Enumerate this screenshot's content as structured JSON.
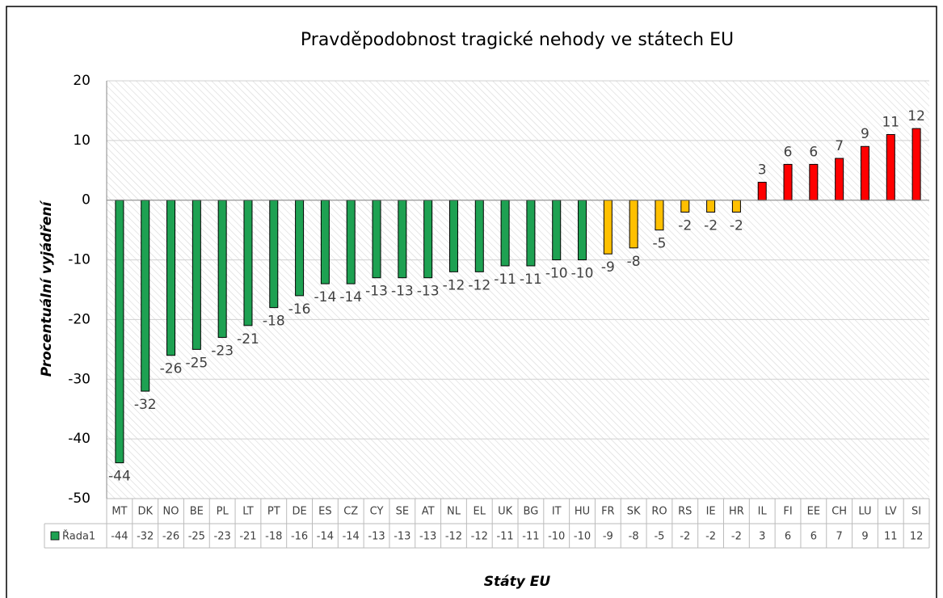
{
  "chart_data": {
    "type": "bar",
    "title": "Pravděpodobnost tragické nehody ve státech EU",
    "x_label": "Státy EU",
    "y_label": "Procentuální vyjádření",
    "categories": [
      "MT",
      "DK",
      "NO",
      "BE",
      "PL",
      "LT",
      "PT",
      "DE",
      "ES",
      "CZ",
      "CY",
      "SE",
      "AT",
      "NL",
      "EL",
      "UK",
      "BG",
      "IT",
      "HU",
      "FR",
      "SK",
      "RO",
      "RS",
      "IE",
      "HR",
      "IL",
      "FI",
      "EE",
      "CH",
      "LU",
      "LV",
      "SI"
    ],
    "series": [
      {
        "name": "Řada1",
        "color": "#1ea152",
        "values": [
          -44,
          -32,
          -26,
          -25,
          -23,
          -21,
          -18,
          -16,
          -14,
          -14,
          -13,
          -13,
          -13,
          -12,
          -12,
          -11,
          -11,
          -10,
          -10,
          -9,
          -8,
          -5,
          -2,
          -2,
          -2,
          3,
          6,
          6,
          7,
          9,
          11,
          12
        ],
        "colors": [
          "#1ea152",
          "#1ea152",
          "#1ea152",
          "#1ea152",
          "#1ea152",
          "#1ea152",
          "#1ea152",
          "#1ea152",
          "#1ea152",
          "#1ea152",
          "#1ea152",
          "#1ea152",
          "#1ea152",
          "#1ea152",
          "#1ea152",
          "#1ea152",
          "#1ea152",
          "#1ea152",
          "#1ea152",
          "#ffc000",
          "#ffc000",
          "#ffc000",
          "#ffc000",
          "#ffc000",
          "#ffc000",
          "#ff0000",
          "#ff0000",
          "#ff0000",
          "#ff0000",
          "#ff0000",
          "#ff0000",
          "#ff0000"
        ]
      }
    ],
    "ylim": [
      -50,
      20
    ],
    "yticks": [
      -50,
      -40,
      -30,
      -20,
      -10,
      0,
      10,
      20
    ],
    "grid": true
  }
}
